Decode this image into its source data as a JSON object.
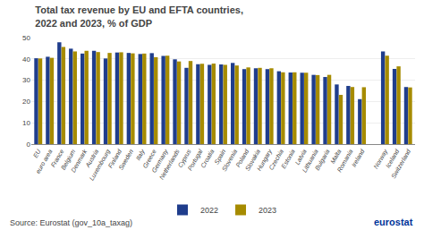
{
  "chart_data": {
    "type": "bar",
    "title": "Total tax revenue by EU and EFTA countries,",
    "subtitle": "2022 and 2023, % of GDP",
    "categories": [
      "EU",
      "euro area",
      "France",
      "Belgium",
      "Denmark",
      "Austria",
      "Luxembourg",
      "Finland",
      "Sweden",
      "Italy",
      "Greece",
      "Germany",
      "Netherlands",
      "Cyprus",
      "Portugal",
      "Croatia",
      "Spain",
      "Slovenia",
      "Poland",
      "Slovakia",
      "Hungary",
      "Czechia",
      "Estonia",
      "Latvia",
      "Lithuania",
      "Bulgaria",
      "Malta",
      "Romania",
      "Ireland",
      null,
      "Norway",
      "Iceland",
      "Switzerland"
    ],
    "series": [
      {
        "name": "2022",
        "color": "#1F3D8C",
        "values": [
          40.3,
          41.0,
          47.8,
          44.8,
          42.5,
          43.8,
          40.2,
          43.0,
          42.8,
          42.3,
          42.7,
          41.4,
          39.8,
          35.8,
          37.5,
          37.2,
          37.4,
          38.1,
          35.2,
          35.6,
          35.2,
          34.2,
          33.6,
          33.5,
          32.5,
          31.5,
          28.0,
          27.3,
          21.1,
          null,
          43.5,
          35.3,
          26.8
        ]
      },
      {
        "name": "2023",
        "color": "#A68B00",
        "values": [
          40.2,
          40.5,
          45.6,
          43.5,
          43.8,
          43.2,
          42.8,
          43.1,
          42.6,
          42.5,
          40.8,
          41.5,
          38.8,
          39.0,
          37.7,
          37.8,
          37.2,
          36.9,
          36.0,
          35.8,
          35.6,
          33.7,
          33.7,
          33.5,
          32.4,
          32.5,
          23.1,
          26.8,
          26.7,
          null,
          41.5,
          36.5,
          26.6
        ]
      }
    ],
    "ylim": [
      0,
      50
    ],
    "yticks": [
      0,
      10,
      20,
      30,
      40,
      50
    ],
    "grid": true,
    "legend": "bottom",
    "annotations": [
      "Source: Eurostat (gov_10a_taxag)",
      "eurostat"
    ]
  }
}
